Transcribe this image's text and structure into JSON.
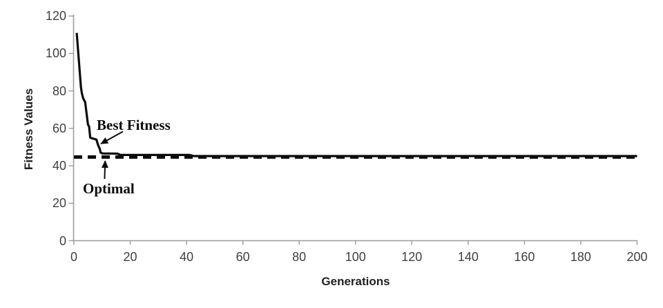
{
  "chart_data": {
    "type": "line",
    "title": "",
    "xlabel": "Generations",
    "ylabel": "Fitness Values",
    "xlim": [
      0,
      200
    ],
    "ylim": [
      0,
      120
    ],
    "x_ticks": [
      0,
      20,
      40,
      60,
      80,
      100,
      120,
      140,
      160,
      180,
      200
    ],
    "y_ticks": [
      0,
      20,
      40,
      60,
      80,
      100,
      120
    ],
    "grid": false,
    "legend": "none",
    "series": [
      {
        "name": "Best Fitness",
        "style": "solid",
        "width": 3.2,
        "points": [
          [
            1,
            111
          ],
          [
            2.5,
            82
          ],
          [
            2.8,
            79
          ],
          [
            3.3,
            76
          ],
          [
            4,
            74
          ],
          [
            5,
            62
          ],
          [
            5.4,
            61
          ],
          [
            5.8,
            55
          ],
          [
            8,
            54
          ],
          [
            8.6,
            51
          ],
          [
            9.2,
            49
          ],
          [
            9.5,
            47
          ],
          [
            10.2,
            46.6
          ],
          [
            15.5,
            46.5
          ],
          [
            16.5,
            45.8
          ],
          [
            41,
            45.8
          ],
          [
            42.5,
            45.2
          ],
          [
            200,
            45.2
          ]
        ]
      },
      {
        "name": "Optimal",
        "style": "dashed",
        "width": 5,
        "points": [
          [
            0,
            44.7
          ],
          [
            200,
            44.7
          ]
        ]
      }
    ],
    "annotations": [
      {
        "text": "Best Fitness",
        "text_xy": [
          8.1,
          65.5
        ],
        "arrow_from": [
          17.4,
          58.3
        ],
        "arrow_to": [
          9.6,
          51.8
        ]
      },
      {
        "text": "Optimal",
        "text_xy": [
          3.2,
          31.5
        ],
        "arrow_from": [
          10.9,
          33.0
        ],
        "arrow_to": [
          11.1,
          42.6
        ]
      }
    ]
  },
  "colors": {
    "background": "#ffffff",
    "axis": "#9c9c9c",
    "tick_label": "#404040",
    "axis_title": "#1f1f1f",
    "line": "#0b0b0b"
  }
}
